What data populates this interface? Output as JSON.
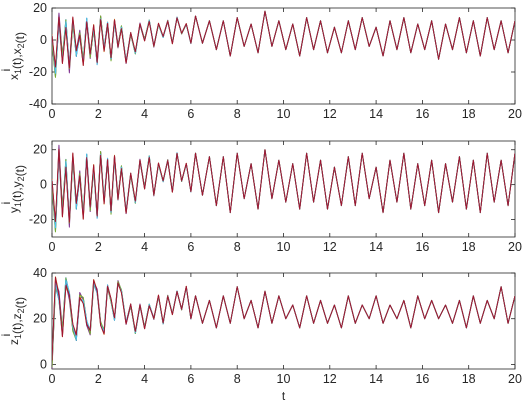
{
  "chart_data": [
    {
      "type": "line",
      "ylabel_main": "x",
      "ylabel_sub1": "1",
      "ylabel_sep": "(t),x",
      "ylabel_sub2": "2",
      "ylabel_end": "(t)",
      "ylabel_sup": "i",
      "xlabel": "",
      "xlim": [
        0,
        20
      ],
      "ylim": [
        -40,
        20
      ],
      "xticks": [
        "0",
        "2",
        "4",
        "6",
        "8",
        "10",
        "12",
        "14",
        "16",
        "18",
        "20"
      ],
      "yticks": [
        "20",
        "0",
        "-20",
        "-40"
      ],
      "grid": false,
      "sync_time": 6.2,
      "series_colors": [
        "#0072bd",
        "#d95319",
        "#edb120",
        "#7e2f8e",
        "#77ac30",
        "#4dbeee",
        "#a2142f"
      ],
      "x": [
        0,
        0.15,
        0.3,
        0.45,
        0.6,
        0.75,
        0.9,
        1.05,
        1.2,
        1.35,
        1.5,
        1.65,
        1.8,
        1.95,
        2.1,
        2.25,
        2.4,
        2.55,
        2.7,
        2.85,
        3.0,
        3.2,
        3.4,
        3.6,
        3.8,
        4.0,
        4.2,
        4.4,
        4.6,
        4.8,
        5.0,
        5.2,
        5.4,
        5.6,
        5.8,
        6.0,
        6.2,
        6.5,
        6.8,
        7.1,
        7.4,
        7.7,
        8.0,
        8.3,
        8.6,
        8.9,
        9.2,
        9.5,
        9.8,
        10.1,
        10.4,
        10.7,
        11.0,
        11.3,
        11.6,
        11.9,
        12.2,
        12.5,
        12.8,
        13.1,
        13.4,
        13.7,
        14.0,
        14.3,
        14.6,
        14.9,
        15.2,
        15.5,
        15.8,
        16.1,
        16.4,
        16.7,
        17.0,
        17.3,
        17.6,
        17.9,
        18.2,
        18.5,
        18.8,
        19.1,
        19.4,
        19.7,
        20.0
      ],
      "y": [
        0,
        -20,
        14,
        -12,
        10,
        -18,
        12,
        -8,
        4,
        -14,
        12,
        -10,
        8,
        -14,
        14,
        -6,
        10,
        -12,
        12,
        -4,
        8,
        -14,
        4,
        -8,
        10,
        0,
        12,
        -4,
        10,
        2,
        12,
        -2,
        14,
        4,
        10,
        -2,
        15,
        -2,
        12,
        -6,
        12,
        -10,
        14,
        -4,
        10,
        -8,
        18,
        -4,
        12,
        -6,
        10,
        -10,
        14,
        -6,
        12,
        -8,
        8,
        -8,
        12,
        -6,
        14,
        -4,
        8,
        -10,
        12,
        -6,
        14,
        -8,
        10,
        -6,
        12,
        -12,
        10,
        -6,
        14,
        -8,
        12,
        -10,
        14,
        -6,
        12,
        -8,
        12
      ]
    },
    {
      "type": "line",
      "ylabel_main": "y",
      "ylabel_sub1": "1",
      "ylabel_sep": "(t),y",
      "ylabel_sub2": "2",
      "ylabel_end": "(t)",
      "ylabel_sup": "i",
      "xlabel": "",
      "xlim": [
        0,
        20
      ],
      "ylim": [
        -30,
        25
      ],
      "xticks": [
        "0",
        "2",
        "4",
        "6",
        "8",
        "10",
        "12",
        "14",
        "16",
        "18",
        "20"
      ],
      "yticks": [
        "20",
        "0",
        "-20"
      ],
      "grid": false,
      "sync_time": 6.2,
      "series_colors": [
        "#0072bd",
        "#d95319",
        "#edb120",
        "#7e2f8e",
        "#77ac30",
        "#4dbeee",
        "#a2142f"
      ],
      "x": [
        0,
        0.15,
        0.3,
        0.45,
        0.6,
        0.75,
        0.9,
        1.05,
        1.2,
        1.35,
        1.5,
        1.65,
        1.8,
        1.95,
        2.1,
        2.25,
        2.4,
        2.55,
        2.7,
        2.85,
        3.0,
        3.2,
        3.4,
        3.6,
        3.8,
        4.0,
        4.2,
        4.4,
        4.6,
        4.8,
        5.0,
        5.2,
        5.4,
        5.6,
        5.8,
        6.0,
        6.2,
        6.5,
        6.8,
        7.1,
        7.4,
        7.7,
        8.0,
        8.3,
        8.6,
        8.9,
        9.2,
        9.5,
        9.8,
        10.1,
        10.4,
        10.7,
        11.0,
        11.3,
        11.6,
        11.9,
        12.2,
        12.5,
        12.8,
        13.1,
        13.4,
        13.7,
        14.0,
        14.3,
        14.6,
        14.9,
        15.2,
        15.5,
        15.8,
        16.1,
        16.4,
        16.7,
        17.0,
        17.3,
        17.6,
        17.9,
        18.2,
        18.5,
        18.8,
        19.1,
        19.4,
        19.7,
        20.0
      ],
      "y": [
        0,
        -24,
        20,
        -16,
        12,
        -22,
        16,
        -12,
        6,
        -18,
        16,
        -14,
        10,
        -18,
        18,
        -10,
        14,
        -16,
        16,
        -8,
        10,
        -16,
        6,
        -10,
        14,
        -2,
        16,
        -6,
        12,
        2,
        14,
        -4,
        18,
        2,
        12,
        -4,
        18,
        -6,
        16,
        -12,
        16,
        -16,
        18,
        -8,
        12,
        -14,
        20,
        -8,
        14,
        -10,
        12,
        -14,
        18,
        -10,
        14,
        -14,
        10,
        -12,
        16,
        -12,
        18,
        -8,
        10,
        -16,
        14,
        -10,
        18,
        -14,
        12,
        -12,
        14,
        -16,
        12,
        -10,
        16,
        -14,
        14,
        -16,
        18,
        -10,
        14,
        -12,
        18
      ]
    },
    {
      "type": "line",
      "ylabel_main": "z",
      "ylabel_sub1": "1",
      "ylabel_sep": "(t),z",
      "ylabel_sub2": "2",
      "ylabel_end": "(t)",
      "ylabel_sup": "i",
      "xlabel": "t",
      "xlim": [
        0,
        20
      ],
      "ylim": [
        -2,
        40
      ],
      "xticks": [
        "0",
        "2",
        "4",
        "6",
        "8",
        "10",
        "12",
        "14",
        "16",
        "18",
        "20"
      ],
      "yticks": [
        "40",
        "20",
        "0"
      ],
      "grid": false,
      "sync_time": 6.2,
      "series_colors": [
        "#0072bd",
        "#d95319",
        "#edb120",
        "#7e2f8e",
        "#77ac30",
        "#4dbeee",
        "#a2142f"
      ],
      "x": [
        0,
        0.15,
        0.3,
        0.45,
        0.6,
        0.75,
        0.9,
        1.05,
        1.2,
        1.35,
        1.5,
        1.65,
        1.8,
        1.95,
        2.1,
        2.25,
        2.4,
        2.55,
        2.7,
        2.85,
        3.0,
        3.2,
        3.4,
        3.6,
        3.8,
        4.0,
        4.2,
        4.4,
        4.6,
        4.8,
        5.0,
        5.2,
        5.4,
        5.6,
        5.8,
        6.0,
        6.2,
        6.5,
        6.8,
        7.1,
        7.4,
        7.7,
        8.0,
        8.3,
        8.6,
        8.9,
        9.2,
        9.5,
        9.8,
        10.1,
        10.4,
        10.7,
        11.0,
        11.3,
        11.6,
        11.9,
        12.2,
        12.5,
        12.8,
        13.1,
        13.4,
        13.7,
        14.0,
        14.3,
        14.6,
        14.9,
        15.2,
        15.5,
        15.8,
        16.1,
        16.4,
        16.7,
        17.0,
        17.3,
        17.6,
        17.9,
        18.2,
        18.5,
        18.8,
        19.1,
        19.4,
        19.7,
        20.0
      ],
      "y": [
        0,
        36,
        30,
        14,
        36,
        30,
        16,
        12,
        30,
        28,
        18,
        14,
        36,
        32,
        18,
        14,
        34,
        28,
        20,
        36,
        32,
        18,
        26,
        14,
        26,
        16,
        26,
        20,
        30,
        18,
        30,
        22,
        32,
        24,
        34,
        20,
        30,
        18,
        28,
        16,
        30,
        18,
        34,
        20,
        28,
        16,
        32,
        18,
        30,
        20,
        26,
        16,
        30,
        18,
        28,
        18,
        26,
        16,
        30,
        18,
        26,
        20,
        30,
        18,
        26,
        20,
        28,
        16,
        30,
        20,
        28,
        20,
        26,
        18,
        28,
        16,
        30,
        18,
        28,
        20,
        34,
        18,
        30
      ]
    }
  ]
}
